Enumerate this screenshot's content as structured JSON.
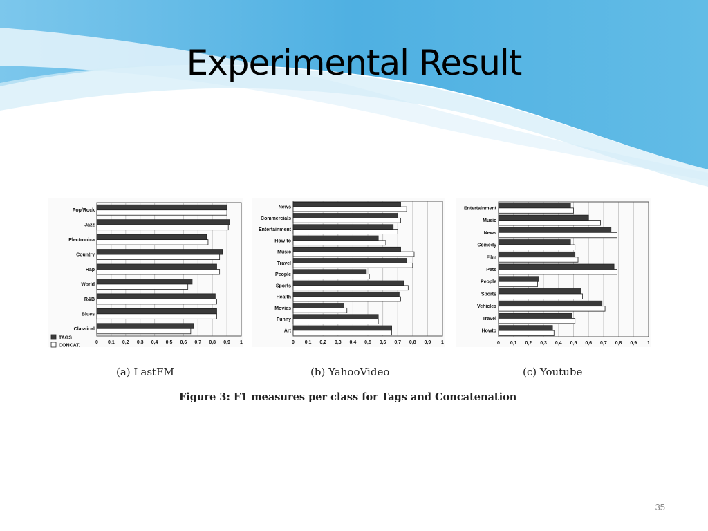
{
  "slide": {
    "title": "Experimental Result",
    "page_number": "35",
    "figure_caption": "Figure 3:  F1 measures per class for Tags and Concatenation"
  },
  "colors": {
    "tags": "#3a3a3a",
    "concat": "#ffffff",
    "grid": "#c8c8c8",
    "banner": "#5cb4e0"
  },
  "chart_data": [
    {
      "type": "bar",
      "orientation": "horizontal",
      "subtitle": "(a) LastFM",
      "categories": [
        "Pop/Rock",
        "Jazz",
        "Electronica",
        "Country",
        "Rap",
        "World",
        "R&B",
        "Blues",
        "Classical"
      ],
      "series": [
        {
          "name": "TAGS",
          "values": [
            0.9,
            0.92,
            0.76,
            0.87,
            0.83,
            0.66,
            0.82,
            0.83,
            0.67
          ]
        },
        {
          "name": "CONCAT.",
          "values": [
            0.9,
            0.91,
            0.77,
            0.85,
            0.85,
            0.63,
            0.83,
            0.83,
            0.65
          ]
        }
      ],
      "xticks": [
        "0",
        "0,1",
        "0,2",
        "0,3",
        "0,4",
        "0,5",
        "0,6",
        "0,7",
        "0,8",
        "0,9",
        "1"
      ],
      "xlim": [
        0,
        1
      ],
      "legend": "bottom-left"
    },
    {
      "type": "bar",
      "orientation": "horizontal",
      "subtitle": "(b) YahooVideo",
      "categories": [
        "News",
        "Commercials",
        "Entertainment",
        "How-to",
        "Music",
        "Travel",
        "People",
        "Sports",
        "Health",
        "Movies",
        "Funny",
        "Art"
      ],
      "series": [
        {
          "name": "TAGS",
          "values": [
            0.72,
            0.7,
            0.67,
            0.57,
            0.72,
            0.76,
            0.49,
            0.74,
            0.71,
            0.34,
            0.57,
            0.66
          ]
        },
        {
          "name": "CONCAT.",
          "values": [
            0.76,
            0.72,
            0.7,
            0.62,
            0.81,
            0.8,
            0.51,
            0.77,
            0.72,
            0.36,
            0.57,
            0.66
          ]
        }
      ],
      "xticks": [
        "0",
        "0,1",
        "0,2",
        "0,3",
        "0,4",
        "0,5",
        "0,6",
        "0,7",
        "0,8",
        "0,9",
        "1"
      ],
      "xlim": [
        0,
        1
      ]
    },
    {
      "type": "bar",
      "orientation": "horizontal",
      "subtitle": "(c) Youtube",
      "categories": [
        "Entertainment",
        "Music",
        "News",
        "Comedy",
        "Film",
        "Pets",
        "People",
        "Sports",
        "Vehicles",
        "Travel",
        "Howto"
      ],
      "series": [
        {
          "name": "TAGS",
          "values": [
            0.48,
            0.6,
            0.75,
            0.48,
            0.51,
            0.77,
            0.27,
            0.55,
            0.69,
            0.49,
            0.36
          ]
        },
        {
          "name": "CONCAT.",
          "values": [
            0.5,
            0.68,
            0.79,
            0.51,
            0.53,
            0.79,
            0.26,
            0.56,
            0.71,
            0.51,
            0.37
          ]
        }
      ],
      "xticks": [
        "0",
        "0,1",
        "0,2",
        "0,3",
        "0,4",
        "0,5",
        "0,6",
        "0,7",
        "0,8",
        "0,9",
        "1"
      ],
      "xlim": [
        0,
        1
      ]
    }
  ]
}
